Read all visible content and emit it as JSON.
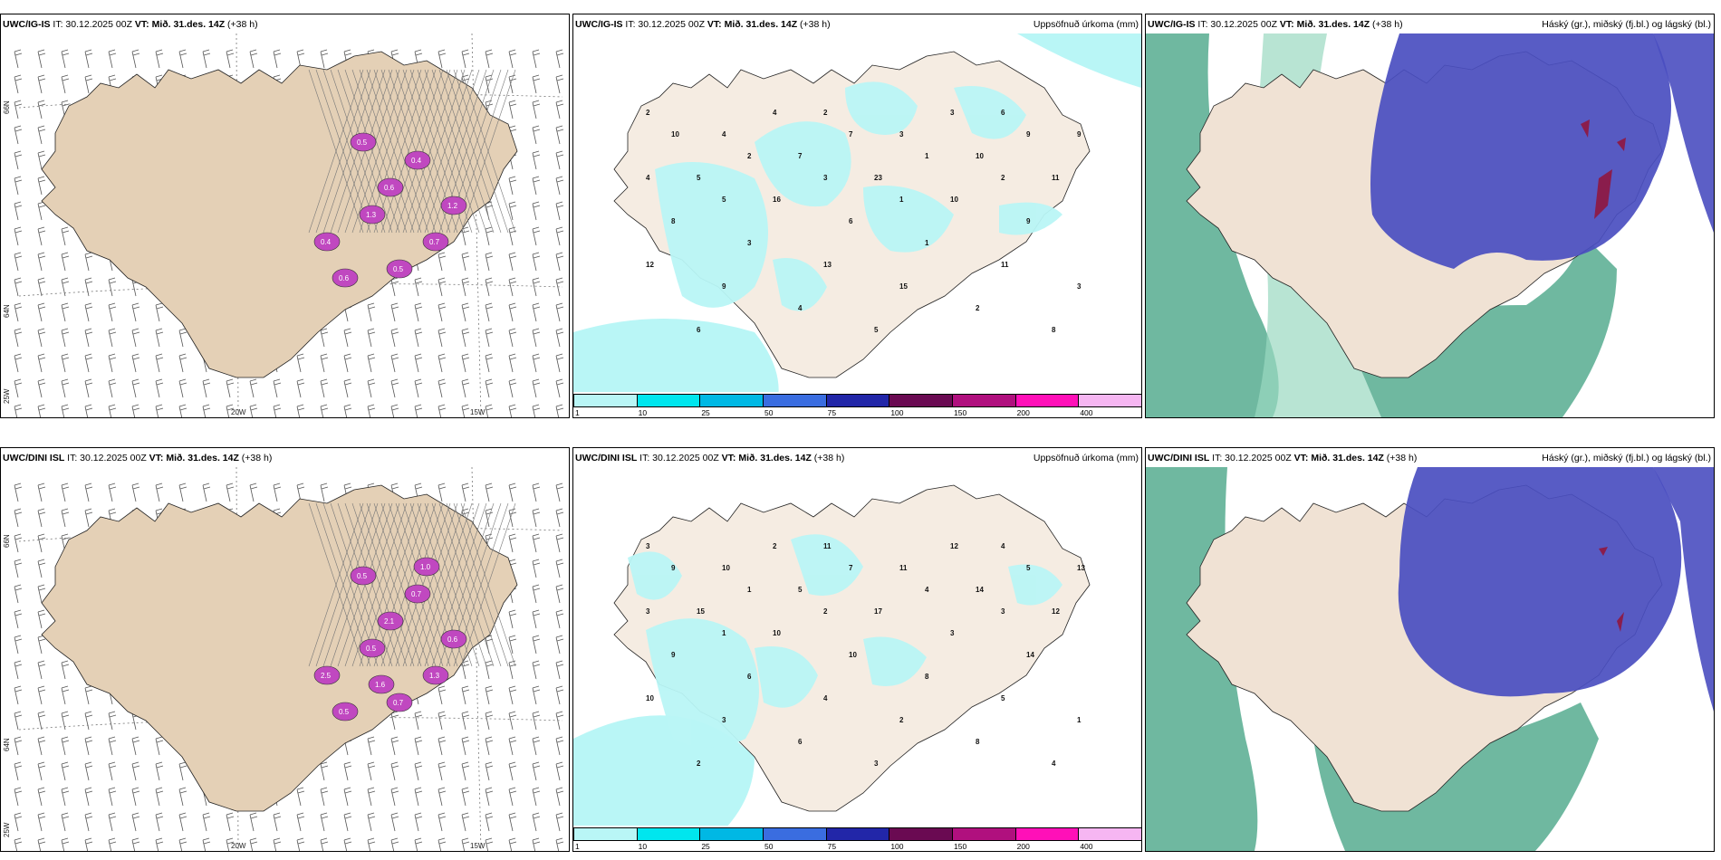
{
  "rows": [
    {
      "model": "UWC/IG-IS",
      "it": "IT: 30.12.2025 00Z",
      "vt": "VT: Mið. 31.des. 14Z",
      "lead": "(+38 h)"
    },
    {
      "model": "UWC/DINI ISL",
      "it": "IT: 30.12.2025 00Z",
      "vt": "VT: Mið. 31.des. 14Z",
      "lead": "(+38 h)"
    }
  ],
  "panel_titles": {
    "precip": "Uppsöfnuð úrkoma (mm)",
    "clouds": "Háský (gr.), miðský (fj.bl.) og lágský (bl.)"
  },
  "axis_labels": {
    "lat_66": "66N",
    "lat_64": "64N",
    "lon_25": "25W",
    "lon_20": "20W",
    "lon_15": "15W"
  },
  "colorbar": [
    {
      "label": "1",
      "color": "#b9f6f6"
    },
    {
      "label": "10",
      "color": "#00e6ee"
    },
    {
      "label": "25",
      "color": "#00b8e4"
    },
    {
      "label": "50",
      "color": "#3a6de0"
    },
    {
      "label": "75",
      "color": "#2226a8"
    },
    {
      "label": "100",
      "color": "#6a0a52"
    },
    {
      "label": "150",
      "color": "#b0107e"
    },
    {
      "label": "200",
      "color": "#ff10b8"
    },
    {
      "label": "400",
      "color": "#f6b6f2"
    }
  ],
  "colors": {
    "land": "#f5ece2",
    "snow_land": "#e4d0b6",
    "precip_light": "#b9f6f6",
    "low_cloud": "#6fb8a0",
    "mid_cloud": "#4a4ec0",
    "high_cloud": "#8a1d4c",
    "ice": "#c048c0"
  },
  "precip_labels": {
    "ig": [
      "2",
      "2",
      "6",
      "4",
      "3",
      "9",
      "7",
      "10",
      "5",
      "23",
      "11",
      "16",
      "10",
      "8",
      "6",
      "9",
      "3",
      "1",
      "12",
      "13",
      "11",
      "9",
      "15",
      "3",
      "4",
      "2",
      "6",
      "5",
      "8",
      "4",
      "3",
      "10",
      "7",
      "9",
      "2",
      "1",
      "4",
      "3",
      "2",
      "5",
      "1"
    ],
    "dini": [
      "3",
      "11",
      "4",
      "10",
      "11",
      "13",
      "5",
      "14",
      "15",
      "17",
      "12",
      "10",
      "3",
      "9",
      "10",
      "14",
      "6",
      "8",
      "10",
      "4",
      "5",
      "3",
      "2",
      "1",
      "6",
      "8",
      "2",
      "3",
      "4",
      "2",
      "12",
      "9",
      "7",
      "5",
      "1",
      "4",
      "3",
      "2",
      "3",
      "1"
    ]
  },
  "ice_labels": {
    "ig": [
      "0.5",
      "0.6",
      "0.4",
      "1.3",
      "0.7",
      "0.4",
      "0.5",
      "0.6",
      "1.2"
    ],
    "dini": [
      "0.5",
      "2.1",
      "0.7",
      "0.5",
      "1.3",
      "2.5",
      "0.7",
      "0.5",
      "0.6",
      "1.0",
      "1.6"
    ]
  }
}
